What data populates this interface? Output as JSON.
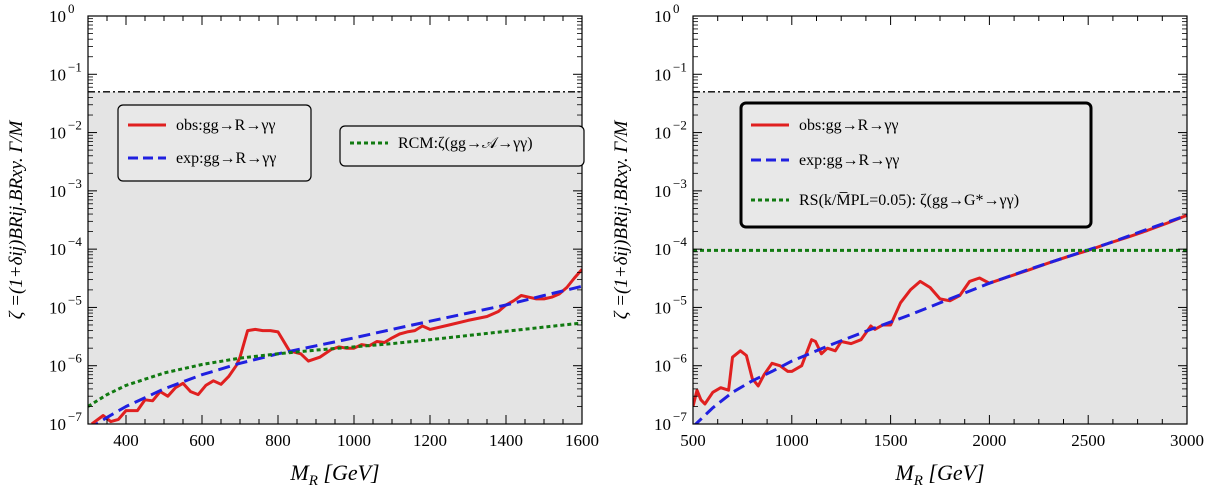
{
  "chart_data": [
    {
      "type": "line",
      "xlabel": "M_R [GeV]",
      "ylabel": "ζ =(1+δij)BRij.BRxy. Γ/M",
      "xlim": [
        300,
        1600
      ],
      "ylim": [
        1e-07,
        1
      ],
      "yscale": "log",
      "xticks": [
        400,
        600,
        800,
        1000,
        1200,
        1400,
        1600
      ],
      "xtick_labels": [
        "400",
        "600",
        "800",
        "1000",
        "1200",
        "1400",
        "1600"
      ],
      "ytick_labels": [
        "10^-7",
        "10^-6",
        "10^-5",
        "10^-4",
        "10^-3",
        "10^-2",
        "10^-1",
        "10^0"
      ],
      "shaded_region_upper": 0.05,
      "reference_line": 0.05,
      "legend_boxes": [
        {
          "entries": [
            "obs:gg→R→γγ",
            "exp:gg→R→γγ"
          ]
        },
        {
          "entries": [
            "RCM:ζ(gg→𝒜→γγ)"
          ]
        }
      ],
      "series": [
        {
          "name": "obs:gg→R→γγ",
          "color": "#e02020",
          "style": "solid",
          "x": [
            310,
            340,
            360,
            380,
            400,
            430,
            450,
            470,
            490,
            510,
            530,
            550,
            570,
            590,
            610,
            630,
            650,
            670,
            690,
            700,
            720,
            740,
            760,
            780,
            800,
            830,
            860,
            880,
            910,
            940,
            960,
            980,
            1000,
            1020,
            1040,
            1060,
            1080,
            1100,
            1120,
            1140,
            1160,
            1180,
            1200,
            1250,
            1300,
            1350,
            1380,
            1400,
            1420,
            1440,
            1460,
            1480,
            1500,
            1520,
            1540,
            1560,
            1580,
            1600
          ],
          "y": [
            1e-07,
            1.4e-07,
            1.1e-07,
            1.2e-07,
            1.7e-07,
            1.7e-07,
            2.6e-07,
            2.5e-07,
            3.6e-07,
            3e-07,
            4.2e-07,
            5e-07,
            3.6e-07,
            3.2e-07,
            4.6e-07,
            5.5e-07,
            4.8e-07,
            6.5e-07,
            1e-06,
            1.4e-06,
            4e-06,
            4.2e-06,
            4e-06,
            4e-06,
            3.8e-06,
            1.8e-06,
            1.6e-06,
            1.2e-06,
            1.4e-06,
            1.9e-06,
            2.1e-06,
            2e-06,
            2e-06,
            2.3e-06,
            2.2e-06,
            2.6e-06,
            2.5e-06,
            3e-06,
            3.5e-06,
            3.8e-06,
            4e-06,
            4.8e-06,
            4.2e-06,
            5e-06,
            6e-06,
            7e-06,
            8.5e-06,
            1.1e-05,
            1.3e-05,
            1.6e-05,
            1.5e-05,
            1.4e-05,
            1.4e-05,
            1.5e-05,
            1.7e-05,
            2.2e-05,
            3.2e-05,
            4.5e-05
          ]
        },
        {
          "name": "exp:gg→R→γγ",
          "color": "#2020e0",
          "style": "dashed",
          "x": [
            300,
            350,
            400,
            500,
            600,
            700,
            800,
            900,
            1000,
            1100,
            1200,
            1300,
            1400,
            1500,
            1600
          ],
          "y": [
            8e-08,
            1.3e-07,
            2e-07,
            4e-07,
            7e-07,
            1.1e-06,
            1.6e-06,
            2.2e-06,
            3e-06,
            4.2e-06,
            5.8e-06,
            8e-06,
            1.1e-05,
            1.6e-05,
            2.3e-05
          ]
        },
        {
          "name": "RCM:ζ(gg→𝒜→γγ)",
          "color": "#117a11",
          "style": "dotted",
          "x": [
            300,
            350,
            400,
            500,
            600,
            700,
            800,
            900,
            1000,
            1100,
            1200,
            1300,
            1400,
            1500,
            1600
          ],
          "y": [
            2e-07,
            3.2e-07,
            4.6e-07,
            7.5e-07,
            1.05e-06,
            1.35e-06,
            1.6e-06,
            1.85e-06,
            2.1e-06,
            2.4e-06,
            2.8e-06,
            3.3e-06,
            3.9e-06,
            4.6e-06,
            5.4e-06
          ]
        }
      ]
    },
    {
      "type": "line",
      "xlabel": "M_R [GeV]",
      "ylabel": "ζ =(1+δij)BRij.BRxy. Γ/M",
      "xlim": [
        500,
        3000
      ],
      "ylim": [
        1e-07,
        1
      ],
      "yscale": "log",
      "xticks": [
        500,
        1000,
        1500,
        2000,
        2500,
        3000
      ],
      "xtick_labels": [
        "500",
        "1000",
        "1500",
        "2000",
        "2500",
        "3000"
      ],
      "ytick_labels": [
        "10^-7",
        "10^-6",
        "10^-5",
        "10^-4",
        "10^-3",
        "10^-2",
        "10^-1",
        "10^0"
      ],
      "shaded_region_upper": 0.05,
      "reference_line": 0.05,
      "legend_boxes": [
        {
          "entries": [
            "obs:gg→R→γγ",
            "exp:gg→R→γγ",
            "RS(k/M̅PL=0.05): ζ(gg→G*→γγ)"
          ]
        }
      ],
      "series": [
        {
          "name": "obs:gg→R→γγ",
          "color": "#e02020",
          "style": "solid",
          "x": [
            500,
            520,
            540,
            560,
            600,
            640,
            680,
            700,
            740,
            770,
            800,
            830,
            860,
            900,
            940,
            980,
            1000,
            1050,
            1100,
            1120,
            1150,
            1180,
            1220,
            1250,
            1300,
            1350,
            1400,
            1420,
            1460,
            1500,
            1550,
            1600,
            1650,
            1700,
            1750,
            1800,
            1850,
            1900,
            1950,
            2000,
            2100,
            2200,
            2300,
            2400,
            2500,
            2600,
            2700,
            2800,
            2900,
            3000
          ],
          "y": [
            2e-07,
            3.8e-07,
            2.6e-07,
            2.2e-07,
            3.5e-07,
            4.2e-07,
            3.8e-07,
            1.4e-06,
            1.8e-06,
            1.5e-06,
            6e-07,
            4.5e-07,
            7e-07,
            1.1e-06,
            1e-06,
            8e-07,
            8e-07,
            1e-06,
            2.8e-06,
            2.6e-06,
            1.6e-06,
            2e-06,
            1.8e-06,
            2.6e-06,
            2.4e-06,
            2.8e-06,
            4.8e-06,
            4.2e-06,
            5e-06,
            5e-06,
            1.2e-05,
            2e-05,
            2.8e-05,
            2.2e-05,
            1.4e-05,
            1.3e-05,
            1.6e-05,
            2.8e-05,
            3.2e-05,
            2.6e-05,
            3.4e-05,
            4.4e-05,
            5.8e-05,
            7.5e-05,
            9.5e-05,
            0.000125,
            0.00016,
            0.00021,
            0.00028,
            0.00038
          ]
        },
        {
          "name": "exp:gg→R→γγ",
          "color": "#2020e0",
          "style": "dashed",
          "x": [
            500,
            600,
            700,
            800,
            900,
            1000,
            1200,
            1400,
            1600,
            1800,
            2000,
            2200,
            2400,
            2600,
            2800,
            3000
          ],
          "y": [
            9e-08,
            1.9e-07,
            3.5e-07,
            5.5e-07,
            8e-07,
            1.2e-06,
            2.3e-06,
            4.2e-06,
            7.5e-06,
            1.4e-05,
            2.6e-05,
            4.5e-05,
            7.5e-05,
            0.000125,
            0.00022,
            0.00038
          ]
        },
        {
          "name": "RS(k/M̅PL=0.05): ζ(gg→G*→γγ)",
          "color": "#117a11",
          "style": "dotted",
          "x": [
            500,
            3000
          ],
          "y": [
            9.5e-05,
            9.5e-05
          ]
        }
      ]
    }
  ]
}
